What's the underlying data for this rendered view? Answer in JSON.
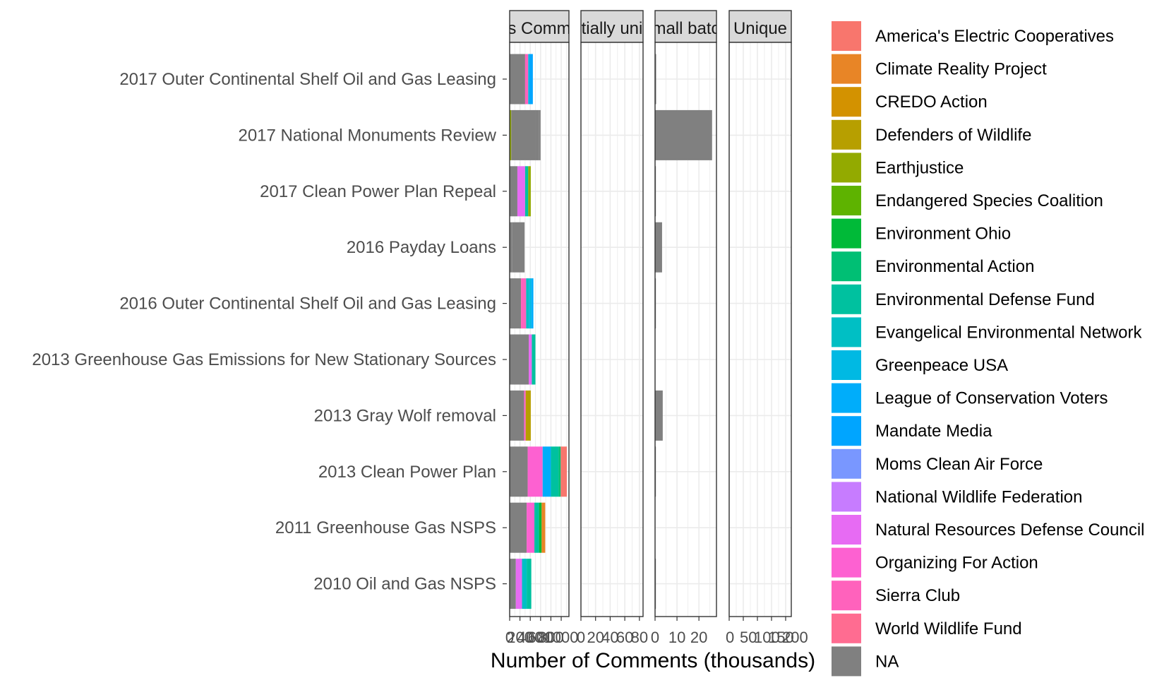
{
  "chart_data": {
    "type": "bar",
    "orientation": "horizontal",
    "stacked": true,
    "xlabel": "Number of Comments (thousands)",
    "ylabel": "",
    "grid": true,
    "legend_position": "right",
    "categories": [
      "2017 Outer Continental Shelf Oil and Gas Leasing",
      "2017 National Monuments Review",
      "2017 Clean Power Plan Repeal",
      "2016 Payday Loans",
      "2016 Outer Continental Shelf Oil and Gas Leasing",
      "2013 Greenhouse Gas Emissions for New Stationary Sources",
      "2013 Gray Wolf removal",
      "2013 Clean Power Plan",
      "2011 Greenhouse Gas NSPS",
      "2010 Oil and Gas NSPS"
    ],
    "legend": [
      {
        "name": "America's Electric Cooperatives",
        "color": "#F8766D"
      },
      {
        "name": "Climate Reality Project",
        "color": "#E88526"
      },
      {
        "name": "CREDO Action",
        "color": "#D39200"
      },
      {
        "name": "Defenders of Wildlife",
        "color": "#B79F00"
      },
      {
        "name": "Earthjustice",
        "color": "#93AA00"
      },
      {
        "name": "Endangered Species Coalition",
        "color": "#5EB300"
      },
      {
        "name": "Environment Ohio",
        "color": "#00BA38"
      },
      {
        "name": "Environmental Action",
        "color": "#00BF74"
      },
      {
        "name": "Environmental Defense Fund",
        "color": "#00C19F"
      },
      {
        "name": "Evangelical Environmental Network",
        "color": "#00BFC4"
      },
      {
        "name": "Greenpeace USA",
        "color": "#00B9E3"
      },
      {
        "name": "League of Conservation Voters",
        "color": "#00ADFA"
      },
      {
        "name": "Mandate Media",
        "color": "#00A5FF"
      },
      {
        "name": "Moms Clean Air Force",
        "color": "#7997FF"
      },
      {
        "name": "National Wildlife Federation",
        "color": "#C77CFF"
      },
      {
        "name": "Natural Resources Defense Council",
        "color": "#E76BF3"
      },
      {
        "name": "Organizing For Action",
        "color": "#FD61D1"
      },
      {
        "name": "Sierra Club",
        "color": "#FF62BC"
      },
      {
        "name": "World Wildlife Fund",
        "color": "#FF6C91"
      },
      {
        "name": "NA",
        "color": "#808080"
      }
    ],
    "facets": [
      {
        "strip": "s Comm",
        "xlim": [
          0,
          1150
        ],
        "ticks": [
          0,
          200,
          400,
          600,
          800,
          1000
        ],
        "tick_labels": [
          "0",
          "200",
          "400",
          "600",
          "800",
          "1000"
        ],
        "tick_anchor": "middle",
        "bars": [
          [
            {
              "v": 300,
              "c": "NA"
            },
            {
              "v": 60,
              "c": "Sierra Club"
            },
            {
              "v": 30,
              "c": "Greenpeace USA"
            },
            {
              "v": 60,
              "c": "Mandate Media"
            }
          ],
          [
            {
              "v": 30,
              "c": "Earthjustice"
            },
            {
              "v": 470,
              "c": "NA"
            },
            {
              "v": 70,
              "c": "NA"
            },
            {
              "v": 30,
              "c": "NA"
            }
          ],
          [
            {
              "v": 150,
              "c": "NA"
            },
            {
              "v": 150,
              "c": "Natural Resources Defense Council"
            },
            {
              "v": 60,
              "c": "Environmental Defense Fund"
            },
            {
              "v": 50,
              "c": "Earthjustice"
            }
          ],
          [
            {
              "v": 50,
              "c": "NA"
            },
            {
              "v": 240,
              "c": "NA"
            }
          ],
          [
            {
              "v": 220,
              "c": "NA"
            },
            {
              "v": 100,
              "c": "Sierra Club"
            },
            {
              "v": 60,
              "c": "Evangelical Environmental Network"
            },
            {
              "v": 40,
              "c": "Greenpeace USA"
            },
            {
              "v": 40,
              "c": "League of Conservation Voters"
            }
          ],
          [
            {
              "v": 370,
              "c": "NA"
            },
            {
              "v": 60,
              "c": "Natural Resources Defense Council"
            },
            {
              "v": 70,
              "c": "Environmental Defense Fund"
            }
          ],
          [
            {
              "v": 280,
              "c": "NA"
            },
            {
              "v": 30,
              "c": "Organizing For Action"
            },
            {
              "v": 100,
              "c": "Defenders of Wildlife"
            }
          ],
          [
            {
              "v": 350,
              "c": "NA"
            },
            {
              "v": 290,
              "c": "Organizing For Action"
            },
            {
              "v": 160,
              "c": "League of Conservation Voters"
            },
            {
              "v": 150,
              "c": "Environmental Defense Fund"
            },
            {
              "v": 40,
              "c": "Environmental Action"
            },
            {
              "v": 120,
              "c": "America's Electric Cooperatives"
            }
          ],
          [
            {
              "v": 330,
              "c": "NA"
            },
            {
              "v": 150,
              "c": "Organizing For Action"
            },
            {
              "v": 90,
              "c": "Environmental Defense Fund"
            },
            {
              "v": 50,
              "c": "Environment Ohio"
            },
            {
              "v": 70,
              "c": "Climate Reality Project"
            }
          ],
          [
            {
              "v": 120,
              "c": "NA"
            },
            {
              "v": 120,
              "c": "Natural Resources Defense Council"
            },
            {
              "v": 90,
              "c": "Evangelical Environmental Network"
            },
            {
              "v": 90,
              "c": "Environmental Defense Fund"
            }
          ]
        ]
      },
      {
        "strip": "tially uni",
        "xlim": [
          0,
          85
        ],
        "ticks": [
          0,
          20,
          40,
          60,
          80
        ],
        "tick_labels": [
          "0",
          "20",
          "40",
          "60",
          "80"
        ],
        "tick_anchor": "middle",
        "bars": [
          [],
          [],
          [],
          [],
          [],
          [],
          [],
          [],
          [],
          []
        ]
      },
      {
        "strip": "mall batc",
        "xlim": [
          0,
          28
        ],
        "ticks": [
          0,
          10,
          20
        ],
        "tick_labels": [
          "0",
          "10",
          "20"
        ],
        "tick_anchor": "middle",
        "bars": [
          [
            {
              "v": 0.5,
              "c": "NA"
            }
          ],
          [
            {
              "v": 26,
              "c": "NA"
            }
          ],
          [
            {
              "v": 0.3,
              "c": "NA"
            }
          ],
          [
            {
              "v": 3.2,
              "c": "NA"
            }
          ],
          [
            {
              "v": 0.2,
              "c": "NA"
            }
          ],
          [],
          [
            {
              "v": 3.5,
              "c": "NA"
            }
          ],
          [
            {
              "v": 0.2,
              "c": "NA"
            }
          ],
          [],
          [
            {
              "v": 0.2,
              "c": "NA"
            }
          ]
        ]
      },
      {
        "strip": "Unique",
        "xlim": [
          0,
          220
        ],
        "ticks": [
          0,
          50,
          100,
          150,
          200
        ],
        "tick_labels": [
          "0",
          "50",
          "100",
          "150",
          "200"
        ],
        "tick_anchor": "start",
        "bars": [
          [],
          [],
          [],
          [],
          [],
          [],
          [],
          [],
          [],
          []
        ]
      }
    ]
  }
}
